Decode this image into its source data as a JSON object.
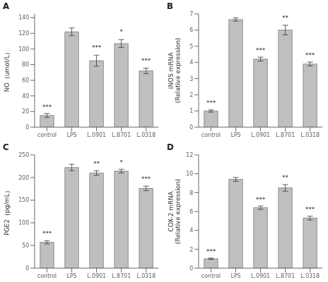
{
  "chart_data": [
    {
      "type": "bar",
      "title": "A",
      "ylabel": "NO（umol/L）",
      "categories": [
        "control",
        "LPS",
        "L.0901",
        "L.8701",
        "L.0318"
      ],
      "values": [
        15,
        122,
        85,
        107,
        72
      ],
      "errors": [
        2.5,
        5,
        7,
        5,
        3.5
      ],
      "color": "#c0bfbf",
      "ylim": [
        0,
        145
      ],
      "yticks": [
        0,
        20,
        40,
        60,
        80,
        100,
        120,
        140
      ],
      "grid": false,
      "annotations": [
        {
          "category": "control",
          "y": 18,
          "text": "***"
        },
        {
          "category": "L.0901",
          "y": 94,
          "text": "***"
        },
        {
          "category": "L.8701",
          "y": 114,
          "text": "*"
        },
        {
          "category": "L.0318",
          "y": 77,
          "text": "***"
        }
      ]
    },
    {
      "type": "bar",
      "title": "B",
      "ylabel": "iNOS mRNA\n(Relative expression)",
      "categories": [
        "control",
        "LPS",
        "L.0901",
        "L.8701",
        "L.0318"
      ],
      "values": [
        1.0,
        6.65,
        4.2,
        6.0,
        3.9
      ],
      "errors": [
        0.07,
        0.1,
        0.12,
        0.3,
        0.12
      ],
      "color": "#c0bfbf",
      "ylim": [
        0,
        7
      ],
      "yticks": [
        0,
        1,
        2,
        3,
        4,
        5,
        6,
        7
      ],
      "grid": false,
      "annotations": [
        {
          "category": "control",
          "y": 1.1,
          "text": "***"
        },
        {
          "category": "L.0901",
          "y": 4.35,
          "text": "***"
        },
        {
          "category": "L.8701",
          "y": 6.35,
          "text": "**"
        },
        {
          "category": "L.0318",
          "y": 4.05,
          "text": "***"
        }
      ]
    },
    {
      "type": "bar",
      "title": "C",
      "ylabel": "PGE2（pg/mL）",
      "categories": [
        "control",
        "LPS",
        "L.0901",
        "L.8701",
        "L.0318"
      ],
      "values": [
        57,
        222,
        210,
        214,
        176
      ],
      "errors": [
        3.5,
        7,
        5,
        4,
        5
      ],
      "color": "#c0bfbf",
      "ylim": [
        0,
        250
      ],
      "yticks": [
        0,
        50,
        100,
        150,
        200,
        250
      ],
      "grid": false,
      "annotations": [
        {
          "category": "control",
          "y": 62,
          "text": "***"
        },
        {
          "category": "L.0901",
          "y": 217,
          "text": "**"
        },
        {
          "category": "L.8701",
          "y": 220,
          "text": "*"
        },
        {
          "category": "L.0318",
          "y": 183,
          "text": "***"
        }
      ]
    },
    {
      "type": "bar",
      "title": "D",
      "ylabel": "COX-2 mRNA\n(Relative expression)",
      "categories": [
        "control",
        "LPS",
        "L.0901",
        "L.8701",
        "L.0318"
      ],
      "values": [
        1.0,
        9.4,
        6.4,
        8.5,
        5.3
      ],
      "errors": [
        0.08,
        0.2,
        0.18,
        0.35,
        0.2
      ],
      "color": "#c0bfbf",
      "ylim": [
        0,
        12
      ],
      "yticks": [
        0,
        2,
        4,
        6,
        8,
        10,
        12
      ],
      "grid": false,
      "annotations": [
        {
          "category": "control",
          "y": 1.12,
          "text": "***"
        },
        {
          "category": "L.0901",
          "y": 6.62,
          "text": "***"
        },
        {
          "category": "L.8701",
          "y": 8.9,
          "text": "**"
        },
        {
          "category": "L.0318",
          "y": 5.55,
          "text": "***"
        }
      ]
    }
  ]
}
